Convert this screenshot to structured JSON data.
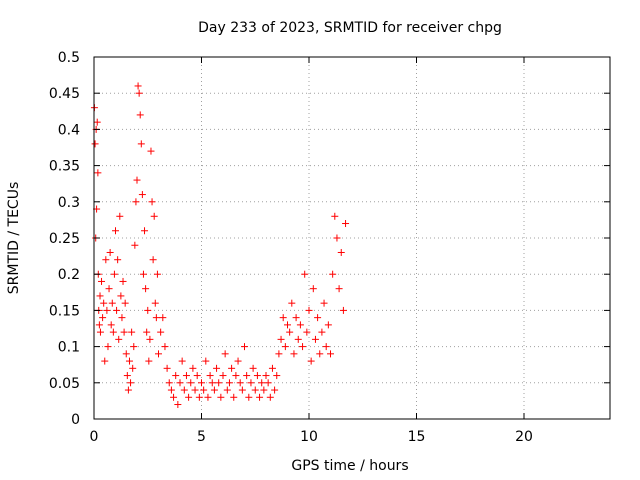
{
  "chart_data": {
    "type": "scatter",
    "title": "Day 233 of 2023, SRMTID for receiver chpg",
    "xlabel": "GPS time / hours",
    "ylabel": "SRMTID / TECUs",
    "xlim": [
      0,
      24
    ],
    "ylim": [
      0,
      0.5
    ],
    "x_ticks": [
      0,
      5,
      10,
      15,
      20
    ],
    "y_ticks": [
      0,
      0.05,
      0.1,
      0.15,
      0.2,
      0.25,
      0.3,
      0.35,
      0.4,
      0.45,
      0.5
    ],
    "grid": true,
    "marker": "+",
    "marker_color": "#ff0000",
    "series": [
      {
        "name": "SRMTID",
        "x": [
          0.02,
          0.05,
          0.08,
          0.1,
          0.12,
          0.15,
          0.18,
          0.2,
          0.22,
          0.25,
          0.28,
          0.3,
          0.35,
          0.4,
          0.45,
          0.5,
          0.55,
          0.6,
          0.65,
          0.7,
          0.75,
          0.8,
          0.85,
          0.9,
          0.95,
          1.0,
          1.05,
          1.1,
          1.15,
          1.2,
          1.25,
          1.3,
          1.35,
          1.4,
          1.45,
          1.5,
          1.55,
          1.6,
          1.65,
          1.7,
          1.75,
          1.8,
          1.85,
          1.9,
          1.95,
          2.0,
          2.05,
          2.1,
          2.15,
          2.2,
          2.25,
          2.3,
          2.35,
          2.4,
          2.45,
          2.5,
          2.55,
          2.6,
          2.65,
          2.7,
          2.75,
          2.8,
          2.85,
          2.9,
          2.95,
          3.0,
          3.1,
          3.2,
          3.3,
          3.4,
          3.5,
          3.6,
          3.7,
          3.8,
          3.9,
          4.0,
          4.1,
          4.2,
          4.3,
          4.4,
          4.5,
          4.6,
          4.7,
          4.8,
          4.9,
          5.0,
          5.1,
          5.2,
          5.3,
          5.4,
          5.5,
          5.6,
          5.7,
          5.8,
          5.9,
          6.0,
          6.1,
          6.2,
          6.3,
          6.4,
          6.5,
          6.6,
          6.7,
          6.8,
          6.9,
          7.0,
          7.1,
          7.2,
          7.3,
          7.4,
          7.5,
          7.6,
          7.7,
          7.8,
          7.9,
          8.0,
          8.1,
          8.2,
          8.3,
          8.4,
          8.5,
          8.6,
          8.7,
          8.8,
          8.9,
          9.0,
          9.1,
          9.2,
          9.3,
          9.4,
          9.5,
          9.6,
          9.7,
          9.8,
          9.9,
          10.0,
          10.1,
          10.2,
          10.3,
          10.4,
          10.5,
          10.6,
          10.7,
          10.8,
          10.9,
          11.0,
          11.1,
          11.2,
          11.3,
          11.4,
          11.5,
          11.6,
          11.7
        ],
        "y": [
          0.43,
          0.38,
          0.25,
          0.4,
          0.29,
          0.41,
          0.34,
          0.2,
          0.15,
          0.13,
          0.17,
          0.12,
          0.19,
          0.14,
          0.16,
          0.08,
          0.22,
          0.15,
          0.1,
          0.18,
          0.23,
          0.13,
          0.16,
          0.12,
          0.2,
          0.26,
          0.15,
          0.22,
          0.11,
          0.28,
          0.17,
          0.14,
          0.19,
          0.12,
          0.16,
          0.09,
          0.06,
          0.04,
          0.08,
          0.05,
          0.12,
          0.07,
          0.1,
          0.24,
          0.3,
          0.33,
          0.46,
          0.45,
          0.42,
          0.38,
          0.31,
          0.2,
          0.26,
          0.18,
          0.12,
          0.15,
          0.08,
          0.11,
          0.37,
          0.3,
          0.22,
          0.28,
          0.16,
          0.14,
          0.2,
          0.09,
          0.12,
          0.14,
          0.1,
          0.07,
          0.05,
          0.04,
          0.03,
          0.06,
          0.02,
          0.05,
          0.08,
          0.04,
          0.06,
          0.03,
          0.05,
          0.07,
          0.04,
          0.06,
          0.03,
          0.05,
          0.04,
          0.08,
          0.03,
          0.06,
          0.05,
          0.04,
          0.07,
          0.05,
          0.03,
          0.06,
          0.09,
          0.04,
          0.05,
          0.07,
          0.03,
          0.06,
          0.08,
          0.05,
          0.04,
          0.1,
          0.06,
          0.03,
          0.05,
          0.07,
          0.04,
          0.06,
          0.03,
          0.05,
          0.04,
          0.06,
          0.05,
          0.03,
          0.07,
          0.04,
          0.06,
          0.09,
          0.11,
          0.14,
          0.1,
          0.13,
          0.12,
          0.16,
          0.09,
          0.14,
          0.11,
          0.13,
          0.1,
          0.2,
          0.12,
          0.15,
          0.08,
          0.18,
          0.11,
          0.14,
          0.09,
          0.12,
          0.16,
          0.1,
          0.13,
          0.09,
          0.2,
          0.28,
          0.25,
          0.18,
          0.23,
          0.15,
          0.27
        ]
      }
    ]
  }
}
